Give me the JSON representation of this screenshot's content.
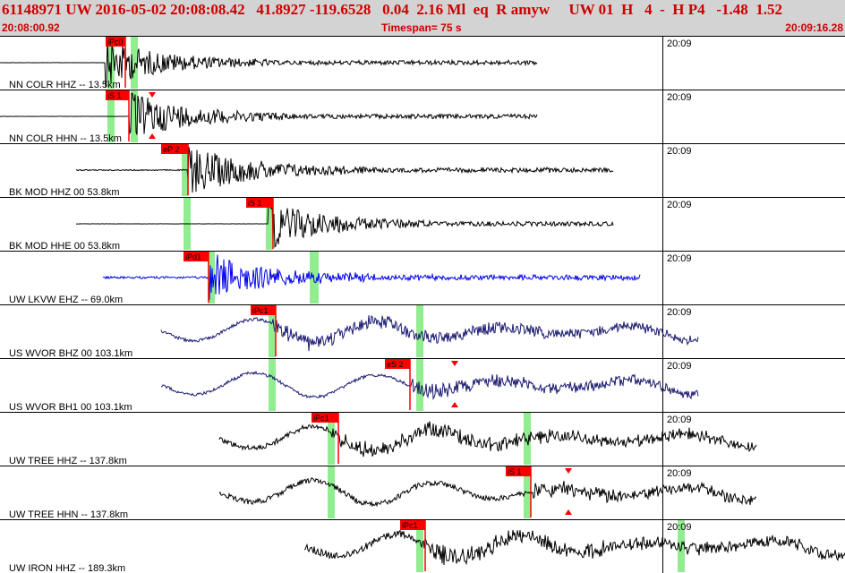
{
  "header": {
    "event_line": "61148971 UW 2016-05-02 20:08:08.42   41.8927 -119.6528   0.04  2.16 Ml  eq  R amyw     UW 01  H   4  -  H P4   -1.48  1.52",
    "start_time": "20:08:00.92",
    "timespan": "Timespan=  75 s",
    "end_time": "20:09:16.28"
  },
  "colors": {
    "header_bg": "#d3d3d3",
    "header_text": "#cc0000",
    "trace_black": "#000000",
    "trace_blue": "#0000ee",
    "trace_navy": "#1a1a70",
    "pick_marker": "#ff0000",
    "pick_band": "#90ee90"
  },
  "time_marker_label": "20:09",
  "panels": [
    {
      "label": "NN COLR HHZ -- 13.5km",
      "trace_color": "#000000",
      "picks": [
        {
          "text": "iPc0"
        }
      ],
      "arrows": []
    },
    {
      "label": "NN COLR HHN -- 13.5km",
      "trace_color": "#000000",
      "picks": [
        {
          "text": "iS 1"
        }
      ],
      "arrows": [
        "triangle-down",
        "triangle-up"
      ]
    },
    {
      "label": "BK MOD HHZ 00 53.8km",
      "trace_color": "#000000",
      "picks": [
        {
          "text": "eP 2"
        }
      ],
      "arrows": []
    },
    {
      "label": "BK MOD HHE 00 53.8km",
      "trace_color": "#000000",
      "picks": [
        {
          "text": "iS 1"
        }
      ],
      "arrows": []
    },
    {
      "label": "UW LKVW EHZ -- 69.0km",
      "trace_color": "#0000ee",
      "picks": [
        {
          "text": "iPd1"
        }
      ],
      "arrows": []
    },
    {
      "label": "US WVOR BHZ 00 103.1km",
      "trace_color": "#1a1a70",
      "picks": [
        {
          "text": "iPc1"
        }
      ],
      "arrows": []
    },
    {
      "label": "US WVOR BH1 00 103.1km",
      "trace_color": "#1a1a70",
      "picks": [
        {
          "text": "eS 2"
        }
      ],
      "arrows": [
        "triangle-down",
        "triangle-up"
      ]
    },
    {
      "label": "UW TREE HHZ -- 137.8km",
      "trace_color": "#000000",
      "picks": [
        {
          "text": "iPc1"
        }
      ],
      "arrows": []
    },
    {
      "label": "UW TREE HHN -- 137.8km",
      "trace_color": "#000000",
      "picks": [
        {
          "text": "iS 1"
        }
      ],
      "arrows": [
        "triangle-down",
        "triangle-up"
      ]
    },
    {
      "label": "UW IRON HHZ -- 189.3km",
      "trace_color": "#000000",
      "picks": [
        {
          "text": "iPc1"
        }
      ],
      "arrows": []
    }
  ]
}
